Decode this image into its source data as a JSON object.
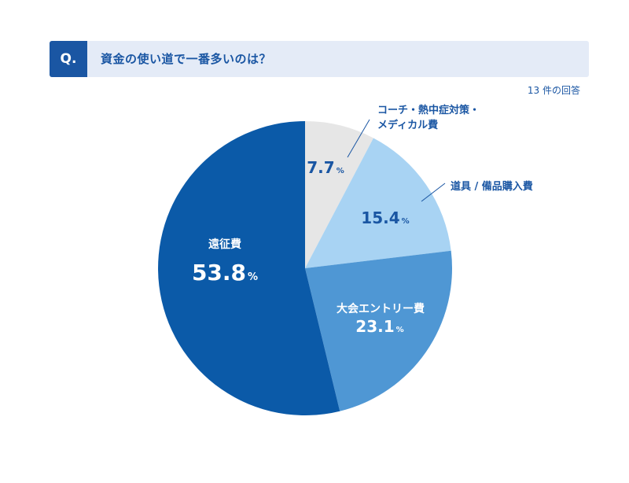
{
  "question": {
    "badge": "Q.",
    "text": "資金の使い道で一番多いのは？"
  },
  "response_count": "13 件の回答",
  "chart_data": {
    "type": "pie",
    "start_angle_deg": 0,
    "direction": "clockwise",
    "slices": [
      {
        "label_lines": [
          "コーチ・熱中症対策・",
          "メディカル費"
        ],
        "value": 7.7,
        "value_text": "7.7",
        "unit": "%",
        "color": "#e6e6e6",
        "value_color": "#1a56a3",
        "label_color": "#1a56a3",
        "label_placement": "outside"
      },
      {
        "label_lines": [
          "道具 / 備品購入費"
        ],
        "value": 15.4,
        "value_text": "15.4",
        "unit": "%",
        "color": "#a8d3f3",
        "value_color": "#1a56a3",
        "label_color": "#1a56a3",
        "label_placement": "outside"
      },
      {
        "label_lines": [
          "大会エントリー費"
        ],
        "value": 23.1,
        "value_text": "23.1",
        "unit": "%",
        "color": "#4f97d4",
        "value_color": "#ffffff",
        "label_color": "#ffffff",
        "label_placement": "inside"
      },
      {
        "label_lines": [
          "遠征費"
        ],
        "value": 53.8,
        "value_text": "53.8",
        "unit": "%",
        "color": "#0b5aa8",
        "value_color": "#ffffff",
        "label_color": "#ffffff",
        "label_placement": "inside"
      }
    ]
  }
}
